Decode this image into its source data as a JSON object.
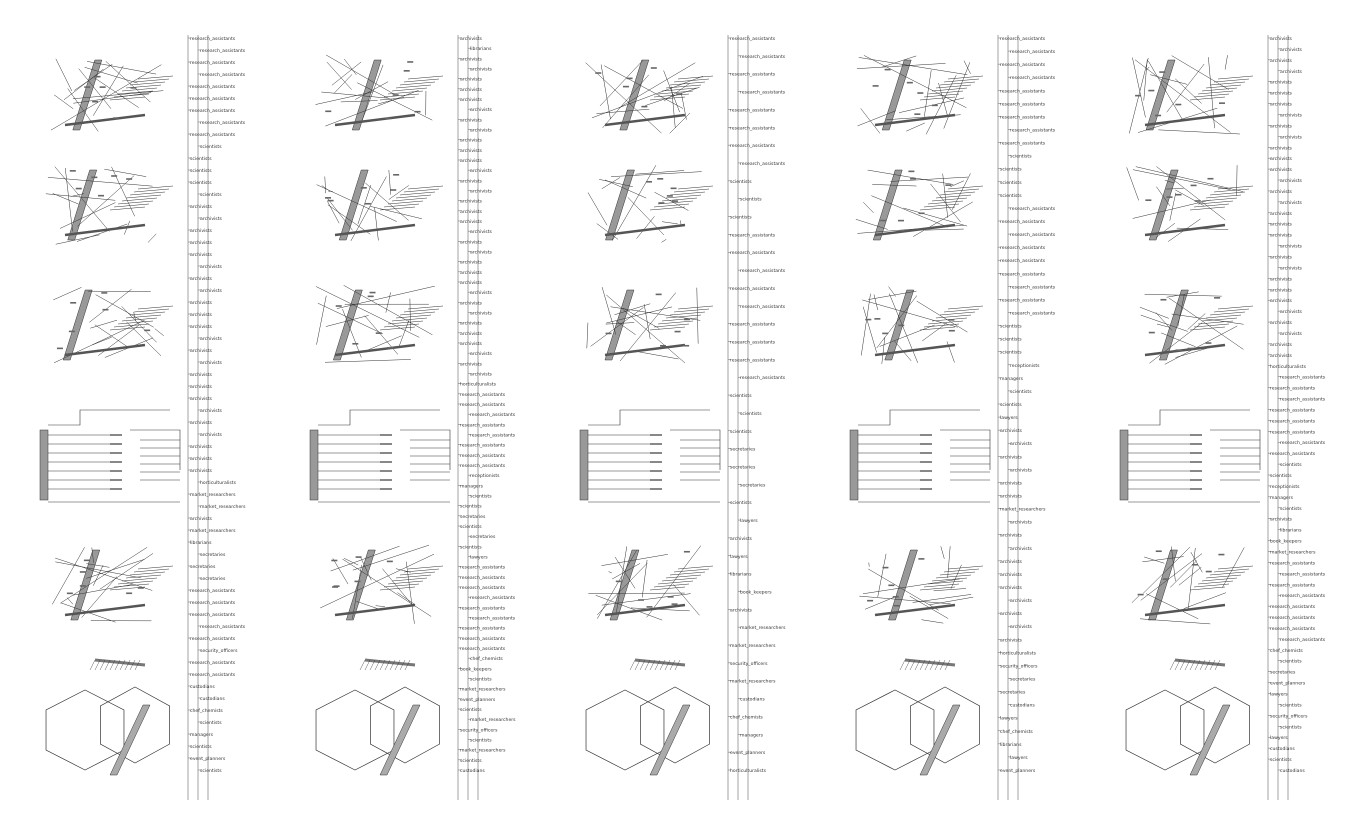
{
  "panels": [
    {
      "timeline": [
        "research_assistants",
        "research_assistants",
        "research_assistants",
        "research_assistants",
        "research_assistants",
        "research_assistants",
        "research_assistants",
        "research_assistants",
        "research_assistants",
        "scientists",
        "scientists",
        "scientists",
        "scientists",
        "scientists",
        "archivists",
        "archivists",
        "archivists",
        "archivists",
        "archivists",
        "archivists",
        "archivists",
        "archivists",
        "archivists",
        "archivists",
        "archivists",
        "archivists",
        "archivists",
        "archivists",
        "archivists",
        "archivists",
        "archivists",
        "archivists",
        "archivists",
        "archivists",
        "archivists",
        "archivists",
        "archivists",
        "horticulturalists",
        "market_researchers",
        "market_researchers",
        "archivists",
        "market_researchers",
        "librarians",
        "secretaries",
        "secretaries",
        "secretaries",
        "research_assistants",
        "research_assistants",
        "research_assistants",
        "research_assistants",
        "research_assistants",
        "security_officers",
        "research_assistants",
        "research_assistants",
        "custodians",
        "custodians",
        "chef_chemists",
        "scientists",
        "managers",
        "scientists",
        "event_planners",
        "scientists"
      ]
    },
    {
      "timeline": [
        "archivists",
        "librarians",
        "archivists",
        "archivists",
        "archivists",
        "archivists",
        "archivists",
        "archivists",
        "archivists",
        "archivists",
        "archivists",
        "archivists",
        "archivists",
        "archivists",
        "archivists",
        "archivists",
        "archivists",
        "archivists",
        "archivists",
        "archivists",
        "archivists",
        "archivists",
        "archivists",
        "archivists",
        "archivists",
        "archivists",
        "archivists",
        "archivists",
        "archivists",
        "archivists",
        "archivists",
        "archivists",
        "archivists",
        "archivists",
        "horticulturalists",
        "research_assistants",
        "research_assistants",
        "research_assistants",
        "research_assistants",
        "research_assistants",
        "research_assistants",
        "research_assistants",
        "research_assistants",
        "receptionists",
        "managers",
        "scientists",
        "scientists",
        "secretaries",
        "scientists",
        "secretaries",
        "scientists",
        "lawyers",
        "research_assistants",
        "research_assistants",
        "research_assistants",
        "research_assistants",
        "research_assistants",
        "research_assistants",
        "research_assistants",
        "research_assistants",
        "research_assistants",
        "chef_chemists",
        "book_keepers",
        "scientists",
        "market_researchers",
        "event_planners",
        "scientists",
        "market_researchers",
        "security_officers",
        "scientists",
        "market_researchers",
        "scientists",
        "custodians"
      ]
    },
    {
      "timeline": [
        "research_assistants",
        "research_assistants",
        "research_assistants",
        "research_assistants",
        "research_assistants",
        "research_assistants",
        "research_assistants",
        "research_assistants",
        "scientists",
        "scientists",
        "scientists",
        "research_assistants",
        "research_assistants",
        "research_assistants",
        "research_assistants",
        "research_assistants",
        "research_assistants",
        "research_assistants",
        "research_assistants",
        "research_assistants",
        "scientists",
        "scientists",
        "scientists",
        "secretaries",
        "secretaries",
        "secretaries",
        "scientists",
        "lawyers",
        "archivists",
        "lawyers",
        "librarians",
        "book_keepers",
        "archivists",
        "market_researchers",
        "market_researchers",
        "security_officers",
        "market_researchers",
        "custodians",
        "chef_chemists",
        "managers",
        "event_planners",
        "horticulturalists"
      ]
    },
    {
      "timeline": [
        "research_assistants",
        "research_assistants",
        "research_assistants",
        "research_assistants",
        "research_assistants",
        "research_assistants",
        "research_assistants",
        "research_assistants",
        "research_assistants",
        "scientists",
        "scientists",
        "scientists",
        "scientists",
        "research_assistants",
        "research_assistants",
        "research_assistants",
        "research_assistants",
        "research_assistants",
        "research_assistants",
        "research_assistants",
        "research_assistants",
        "research_assistants",
        "scientists",
        "scientists",
        "scientists",
        "receptionists",
        "managers",
        "scientists",
        "scientists",
        "lawyers",
        "archivists",
        "archivists",
        "archivists",
        "archivists",
        "archivists",
        "archivists",
        "market_researchers",
        "archivists",
        "archivists",
        "archivists",
        "archivists",
        "archivists",
        "archivists",
        "archivists",
        "archivists",
        "archivists",
        "archivists",
        "horticulturalists",
        "security_officers",
        "secretaries",
        "secretaries",
        "custodians",
        "lawyers",
        "chef_chemists",
        "librarians",
        "lawyers",
        "event_planners"
      ]
    },
    {
      "timeline": [
        "archivists",
        "archivists",
        "archivists",
        "archivists",
        "archivists",
        "archivists",
        "archivists",
        "archivists",
        "archivists",
        "archivists",
        "archivists",
        "archivists",
        "archivists",
        "archivists",
        "archivists",
        "archivists",
        "archivists",
        "archivists",
        "archivists",
        "archivists",
        "archivists",
        "archivists",
        "archivists",
        "archivists",
        "archivists",
        "archivists",
        "archivists",
        "archivists",
        "archivists",
        "archivists",
        "horticulturalists",
        "research_assistants",
        "research_assistants",
        "research_assistants",
        "research_assistants",
        "research_assistants",
        "research_assistants",
        "research_assistants",
        "research_assistants",
        "scientists",
        "scientists",
        "receptionists",
        "managers",
        "scientists",
        "archivists",
        "librarians",
        "book_keepers",
        "market_researchers",
        "research_assistants",
        "research_assistants",
        "research_assistants",
        "research_assistants",
        "research_assistants",
        "research_assistants",
        "research_assistants",
        "research_assistants",
        "chef_chemists",
        "scientists",
        "secretaries",
        "event_planners",
        "lawyers",
        "scientists",
        "security_officers",
        "scientists",
        "lawyers",
        "custodians",
        "scientists",
        "custodians"
      ]
    }
  ]
}
